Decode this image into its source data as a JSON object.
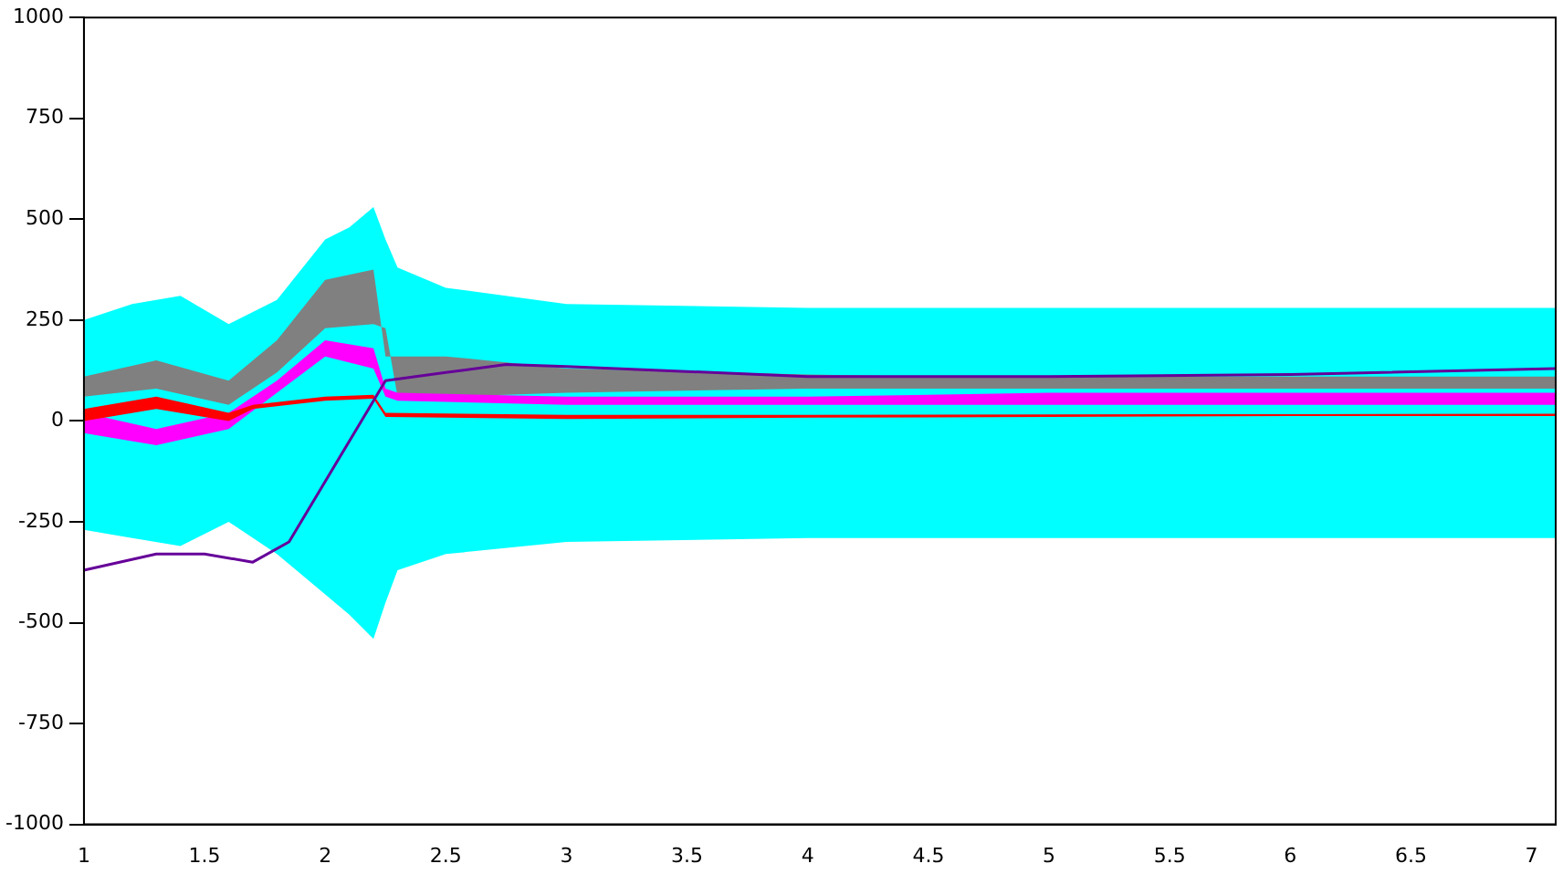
{
  "chart_data": {
    "type": "line",
    "xlim": [
      1,
      7.1
    ],
    "xticks": [
      1,
      1.5,
      2,
      2.5,
      3,
      3.5,
      4,
      4.5,
      5,
      5.5,
      6,
      6.5,
      7
    ],
    "ylim": [
      -1000,
      1000
    ],
    "yticks": [
      -1000,
      -750,
      -500,
      -250,
      0,
      250,
      500,
      750,
      1000
    ],
    "grid": false,
    "legend": false,
    "marker": "none",
    "line_style": "solid",
    "series": [
      {
        "color": "#00ffff",
        "x": [
          1,
          1.2,
          1.4,
          1.6,
          1.8,
          2,
          2.1,
          2.2,
          2.25,
          2.3,
          2.5,
          3,
          4,
          5,
          6,
          7.1
        ],
        "values": [
          null,
          null,
          null,
          null,
          null,
          null,
          null,
          null,
          null,
          null,
          null,
          null,
          null,
          null,
          null,
          null
        ],
        "lower": [
          -270,
          -290,
          -310,
          -250,
          -330,
          -430,
          -480,
          -540,
          -450,
          -370,
          -330,
          -300,
          -290,
          -290,
          -290,
          -290
        ],
        "upper": [
          250,
          290,
          310,
          240,
          300,
          450,
          480,
          530,
          450,
          380,
          330,
          290,
          280,
          280,
          280,
          280
        ]
      },
      {
        "color": "#808080",
        "x": [
          1,
          1.3,
          1.6,
          1.8,
          2,
          2.2,
          2.25,
          2.3,
          2.5,
          3,
          4,
          4.5,
          5,
          6,
          7.1
        ],
        "values": [
          null,
          null,
          null,
          null,
          null,
          null,
          null,
          null,
          null,
          null,
          null,
          null,
          null,
          null,
          null
        ],
        "lower": [
          60,
          80,
          40,
          120,
          230,
          240,
          230,
          60,
          60,
          70,
          80,
          80,
          80,
          80,
          80
        ],
        "upper": [
          110,
          150,
          100,
          200,
          350,
          375,
          160,
          160,
          160,
          130,
          115,
          110,
          110,
          110,
          110
        ]
      },
      {
        "color": "#ff00ff",
        "x": [
          1,
          1.3,
          1.6,
          1.8,
          2,
          2.2,
          2.25,
          2.3,
          3,
          4,
          5,
          6,
          7.1
        ],
        "values": [
          null,
          null,
          null,
          null,
          null,
          null,
          null,
          null,
          null,
          null,
          null,
          null,
          null
        ],
        "lower": [
          -30,
          -60,
          -20,
          70,
          160,
          130,
          60,
          50,
          40,
          40,
          40,
          40,
          40
        ],
        "upper": [
          20,
          -20,
          20,
          100,
          200,
          180,
          80,
          70,
          60,
          60,
          70,
          70,
          70
        ]
      },
      {
        "color": "#ff0000",
        "x": [
          1,
          1.3,
          1.6,
          1.7,
          2,
          2.2,
          2.25,
          3,
          4,
          5,
          6,
          7.1
        ],
        "values": [
          null,
          null,
          null,
          null,
          null,
          null,
          null,
          null,
          null,
          null,
          null,
          null
        ],
        "lower": [
          0,
          30,
          0,
          30,
          50,
          55,
          10,
          5,
          8,
          10,
          12,
          12
        ],
        "upper": [
          30,
          60,
          20,
          40,
          60,
          65,
          20,
          15,
          15,
          16,
          17,
          18
        ]
      },
      {
        "color": "#660099",
        "x": [
          1,
          1.3,
          1.5,
          1.7,
          1.85,
          2,
          2.15,
          2.25,
          2.5,
          2.75,
          3,
          4,
          5,
          6,
          7.1
        ],
        "values": [
          -370,
          -330,
          -330,
          -350,
          -300,
          -150,
          0,
          100,
          120,
          140,
          135,
          110,
          110,
          115,
          130
        ]
      }
    ]
  }
}
